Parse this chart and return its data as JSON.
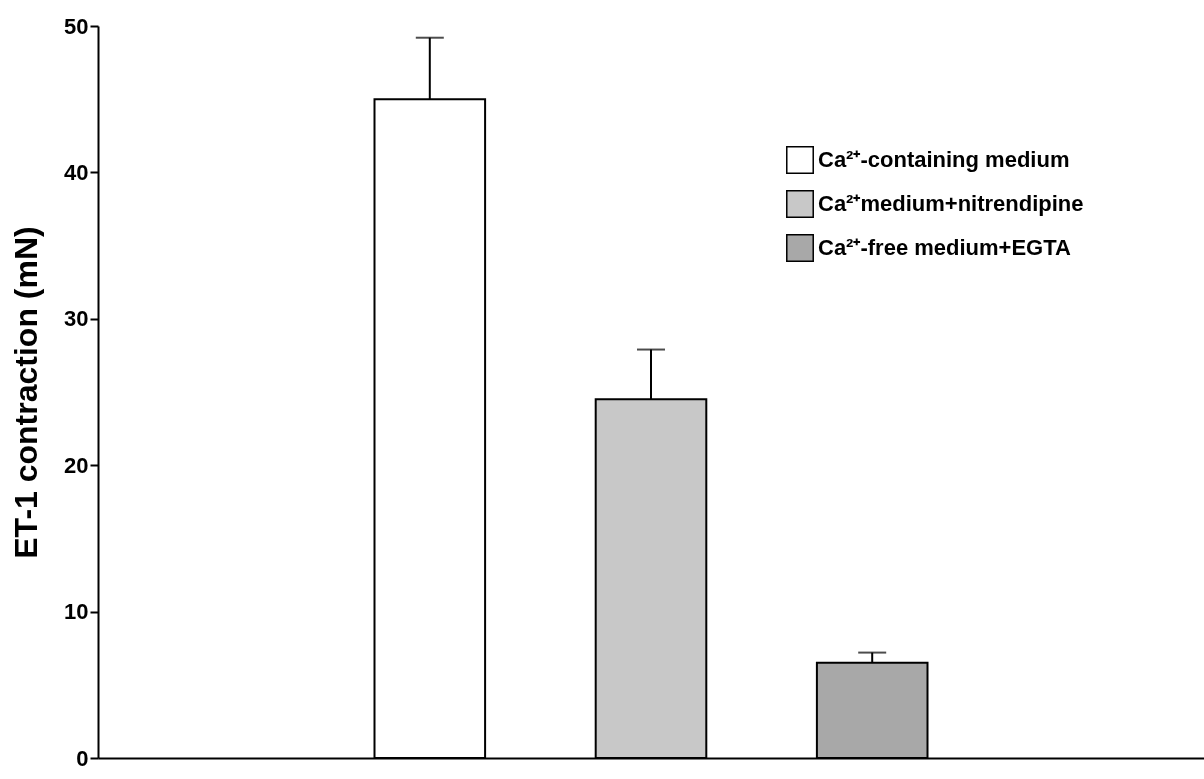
{
  "chart_data": {
    "type": "bar",
    "ylabel": "ET-1 contraction (mN)",
    "categories": [
      null,
      null,
      null,
      null,
      null
    ],
    "series": [
      {
        "name": "Ca²⁺-containing medium",
        "color": "#ffffff",
        "values": [
          null,
          45,
          null,
          null,
          null
        ],
        "errors": [
          null,
          [
            45,
            49.2
          ],
          null,
          null,
          null
        ]
      },
      {
        "name": "Ca²⁺medium+nitrendipine",
        "color": "#c8c8c8",
        "values": [
          null,
          null,
          24.5,
          null,
          null
        ],
        "errors": [
          null,
          null,
          [
            24.5,
            27.9
          ],
          null,
          null
        ]
      },
      {
        "name": "Ca²⁺-free medium+EGTA",
        "color": "#a8a8a8",
        "values": [
          null,
          null,
          null,
          6.5,
          null
        ],
        "errors": [
          null,
          null,
          null,
          [
            6.5,
            7.2
          ],
          null
        ]
      }
    ],
    "ylim": [
      0,
      50
    ],
    "yticks": [
      0,
      10,
      20,
      30,
      40,
      50
    ],
    "grid": false,
    "legend": "top right",
    "tick_labels": "y"
  }
}
